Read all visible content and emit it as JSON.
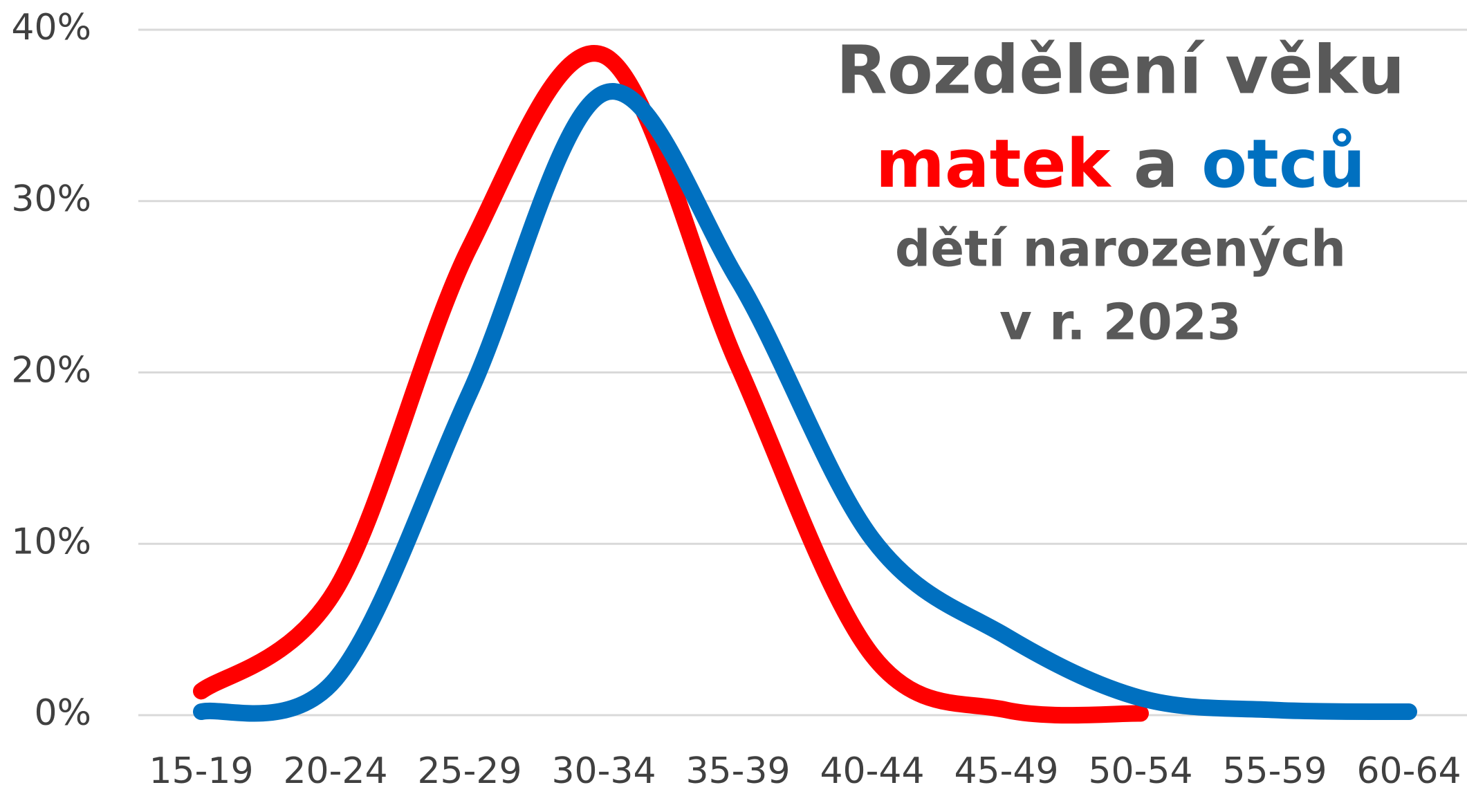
{
  "chart_data": {
    "type": "line",
    "title": "Rozdělení věku",
    "title_connector": "a",
    "subtitle": [
      "dětí narozených",
      "v r. 2023"
    ],
    "categories": [
      "15-19",
      "20-24",
      "25-29",
      "30-34",
      "35-39",
      "40-44",
      "45-49",
      "50-54",
      "55-59",
      "60-64"
    ],
    "series": [
      {
        "name": "matek",
        "color": "#ff0000",
        "values": [
          1.4,
          7.3,
          27.3,
          38.5,
          20.4,
          3.5,
          0.3,
          0.1,
          null,
          null
        ]
      },
      {
        "name": "otců",
        "color": "#0070c0",
        "values": [
          0.2,
          2.1,
          18.8,
          36.3,
          25.4,
          10.3,
          4.6,
          1.0,
          0.3,
          0.2
        ]
      }
    ],
    "ylim": [
      0,
      40
    ],
    "yticks": [
      {
        "value": 0,
        "label": "0%"
      },
      {
        "value": 10,
        "label": "10%"
      },
      {
        "value": 20,
        "label": "20%"
      },
      {
        "value": 30,
        "label": "30%"
      },
      {
        "value": 40,
        "label": "40%"
      }
    ],
    "grid": true,
    "smooth": true
  }
}
